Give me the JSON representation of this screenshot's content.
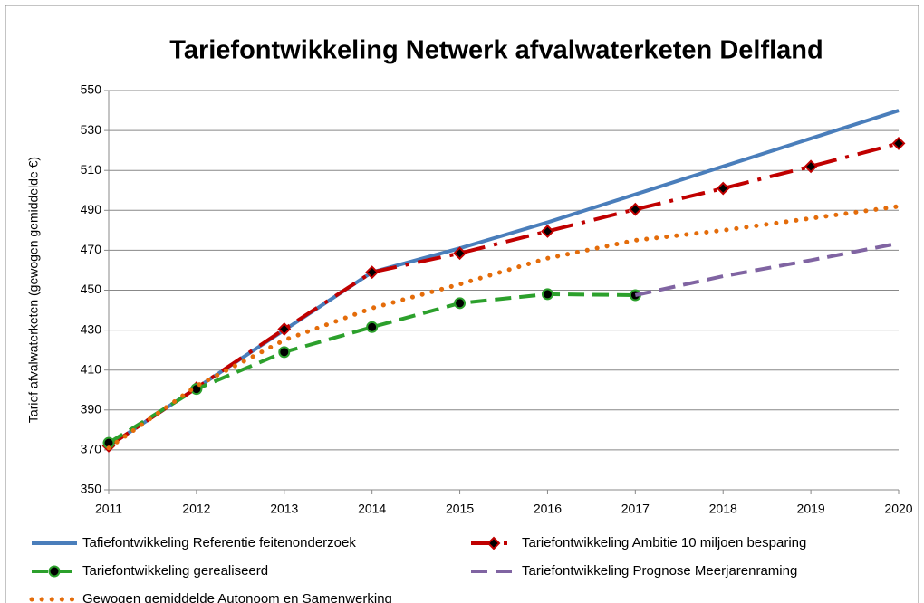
{
  "chart_data": {
    "type": "line",
    "title": "Tariefontwikkeling Netwerk afvalwaterketen Delfland",
    "y_label": "Tarief afvalwaterketen  (gewogen gemiddelde €)",
    "x": [
      2011,
      2012,
      2013,
      2014,
      2015,
      2016,
      2017,
      2018,
      2019,
      2020
    ],
    "xlim": [
      2011,
      2020
    ],
    "xticks": [
      2011,
      2012,
      2013,
      2014,
      2015,
      2016,
      2017,
      2018,
      2019,
      2020
    ],
    "ylim": [
      350,
      550
    ],
    "yticks": [
      350,
      370,
      390,
      410,
      430,
      450,
      470,
      490,
      510,
      530,
      550
    ],
    "grid": true,
    "legend": "bottom",
    "series": [
      {
        "name": "Tafiefontwikkeling Referentie feitenonderzoek",
        "color": "#4a7ebb",
        "style": "solid",
        "marker": "none",
        "values": [
          372,
          401,
          430,
          459,
          471,
          484,
          498,
          512,
          526,
          540
        ]
      },
      {
        "name": "Tariefontwikkeling Ambitie 10 miljoen besparing",
        "color": "#c00000",
        "style": "dashdot",
        "marker": "diamond",
        "values": [
          372,
          401,
          430.5,
          459,
          468.5,
          479.5,
          490.5,
          501,
          512,
          523.5
        ]
      },
      {
        "name": "Tariefontwikkeling gerealiseerd",
        "color": "#2ca02c",
        "style": "dash",
        "marker": "circle",
        "values": [
          373.5,
          400.5,
          419,
          431.5,
          443.5,
          448,
          447.5,
          null,
          null,
          null
        ]
      },
      {
        "name": "Tariefontwikkeling Prognose Meerjarenraming",
        "color": "#8064a2",
        "style": "dash",
        "marker": "none",
        "values": [
          null,
          null,
          null,
          null,
          null,
          null,
          447.5,
          457,
          465,
          473.5
        ]
      },
      {
        "name": "Gewogen gemiddelde Autonoom en Samenwerking",
        "color": "#e46c0a",
        "style": "dot",
        "marker": "none",
        "values": [
          371,
          402,
          425,
          441,
          453,
          466,
          475,
          480,
          486,
          492
        ]
      }
    ]
  }
}
